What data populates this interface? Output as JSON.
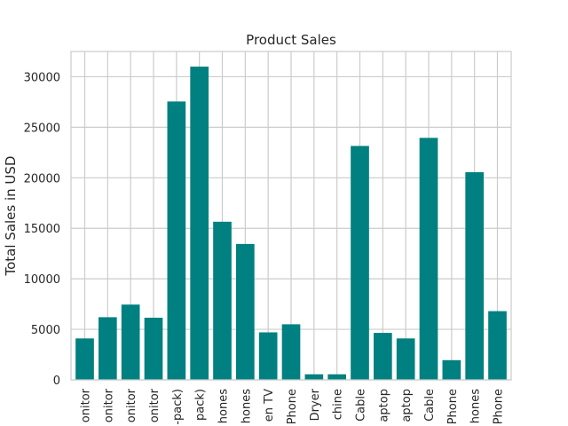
{
  "chart_data": {
    "type": "bar",
    "title": "Product Sales",
    "xlabel": "",
    "ylabel": "Total Sales in USD",
    "ylim": [
      0,
      32500
    ],
    "yticks": [
      0,
      5000,
      10000,
      15000,
      20000,
      25000,
      30000
    ],
    "grid": true,
    "bar_color": "#008080",
    "categories": [
      "onitor",
      "onitor",
      "onitor",
      "onitor",
      "-pack)",
      "pack)",
      "hones",
      "hones",
      "en TV",
      "Phone",
      "Dryer",
      "chine",
      "Cable",
      "aptop",
      "aptop",
      "Cable",
      "Phone",
      "hones",
      "Phone"
    ],
    "values": [
      4100,
      6200,
      7450,
      6150,
      27550,
      31000,
      15650,
      13450,
      4700,
      5500,
      550,
      550,
      23150,
      4650,
      4100,
      23950,
      1950,
      20550,
      6800
    ]
  }
}
